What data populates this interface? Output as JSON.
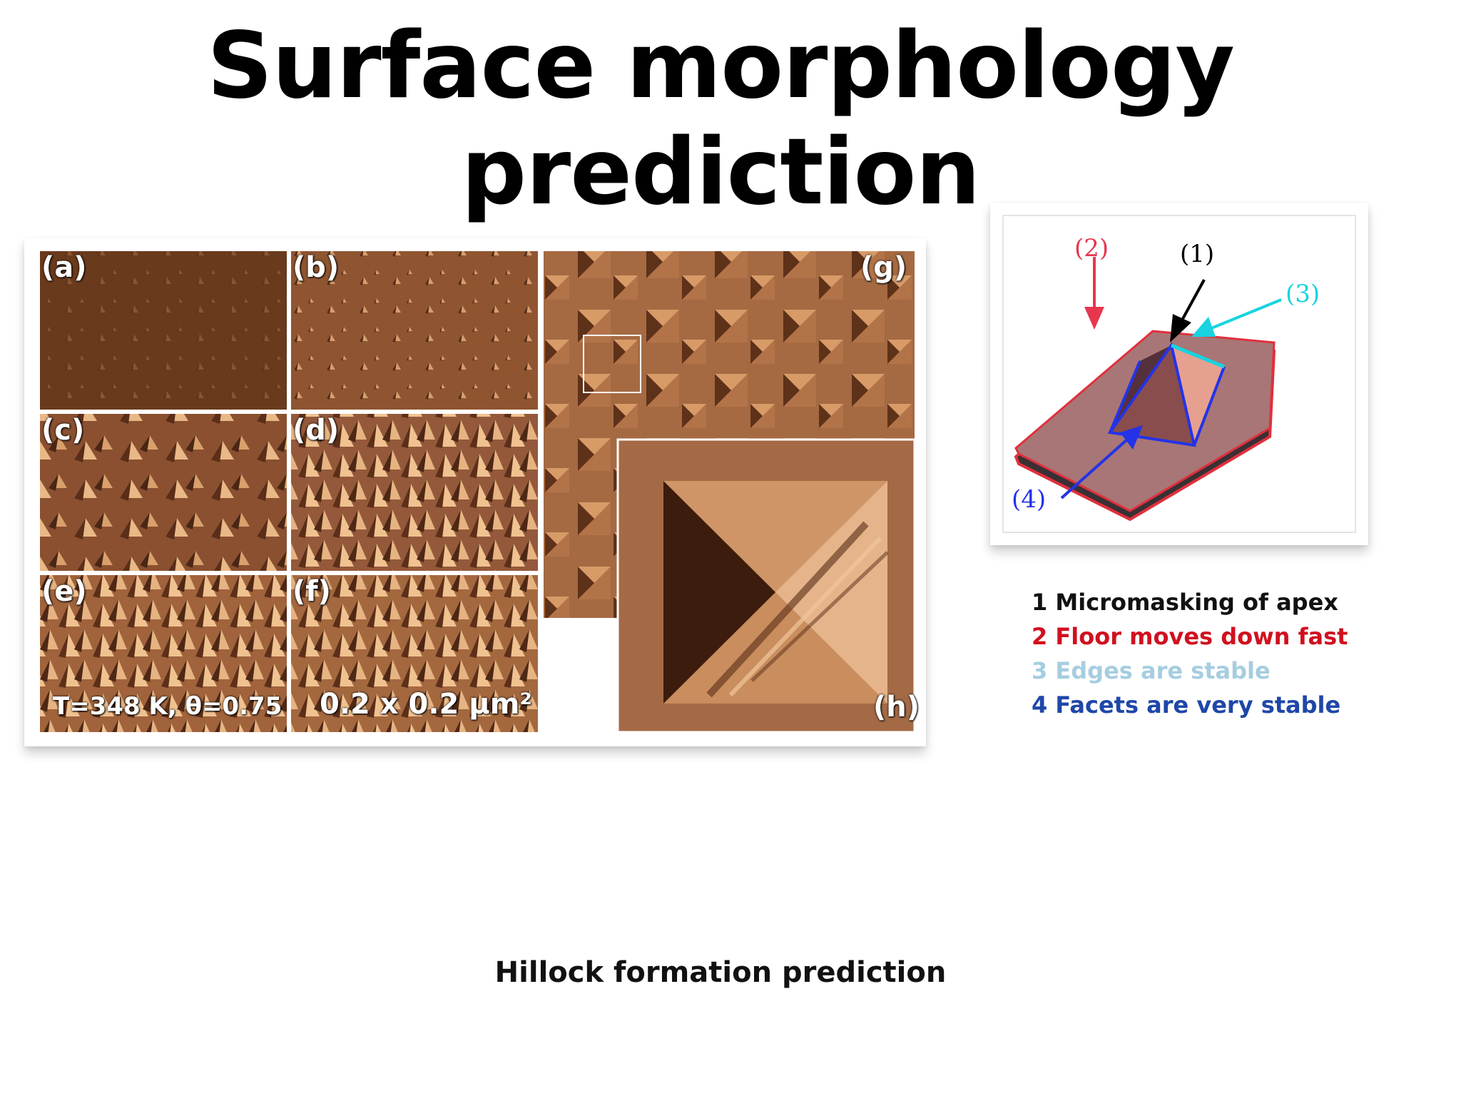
{
  "slide": {
    "title": "Surface morphology prediction",
    "caption": "Hillock formation prediction"
  },
  "figure": {
    "panels": [
      {
        "id": "a",
        "label": "(a)"
      },
      {
        "id": "b",
        "label": "(b)"
      },
      {
        "id": "c",
        "label": "(c)"
      },
      {
        "id": "d",
        "label": "(d)"
      },
      {
        "id": "e",
        "label": "(e)",
        "note": "T=348 K, θ=0.75"
      },
      {
        "id": "f",
        "label": "(f)",
        "note": "0.2 x 0.2 μm²"
      },
      {
        "id": "g",
        "label": "(g)"
      },
      {
        "id": "h",
        "label": "(h)"
      }
    ]
  },
  "diagram": {
    "markers": [
      "(1)",
      "(2)",
      "(3)",
      "(4)"
    ],
    "colors": {
      "marker1": "#000000",
      "marker2": "#e8364e",
      "marker3": "#19d3e0",
      "marker4": "#2433e8",
      "floor": "#a87676",
      "floor_edge": "#e0303c"
    }
  },
  "legend": {
    "items": [
      {
        "text": "1 Micromasking of apex",
        "color": "#111111"
      },
      {
        "text": "2 Floor moves down fast",
        "color": "#d0101f"
      },
      {
        "text": "3 Edges are stable",
        "color": "#a6cde0"
      },
      {
        "text": "4 Facets are very stable",
        "color": "#1f47a8"
      }
    ]
  }
}
